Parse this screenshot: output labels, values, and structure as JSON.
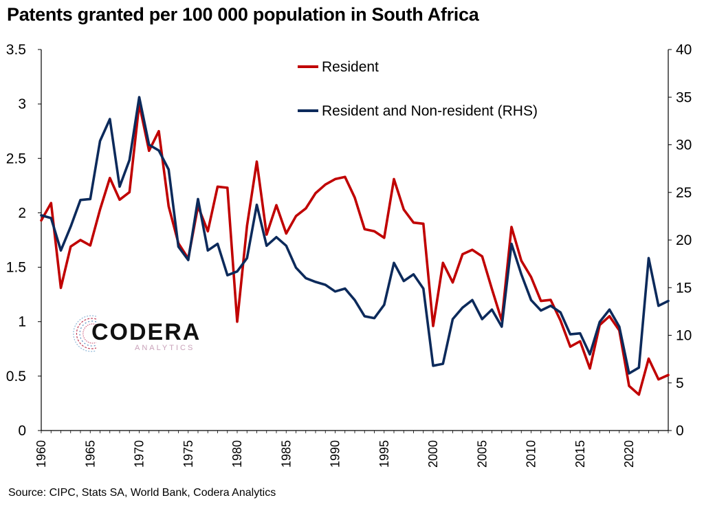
{
  "title": "Patents granted per 100 000 population in South Africa",
  "source": "Source: CIPC, Stats SA, World Bank, Codera Analytics",
  "logo": {
    "name": "CODERA",
    "tagline": "ANALYTICS"
  },
  "chart_data": {
    "type": "line",
    "title": "Patents granted per 100 000 population in South Africa",
    "x": [
      1960,
      1961,
      1962,
      1963,
      1964,
      1965,
      1966,
      1967,
      1968,
      1969,
      1970,
      1971,
      1972,
      1973,
      1974,
      1975,
      1976,
      1977,
      1978,
      1979,
      1980,
      1981,
      1982,
      1983,
      1984,
      1985,
      1986,
      1987,
      1988,
      1989,
      1990,
      1991,
      1992,
      1993,
      1994,
      1995,
      1996,
      1997,
      1998,
      1999,
      2000,
      2001,
      2002,
      2003,
      2004,
      2005,
      2006,
      2007,
      2008,
      2009,
      2010,
      2011,
      2012,
      2013,
      2014,
      2015,
      2016,
      2017,
      2018,
      2019,
      2020,
      2021,
      2022,
      2023,
      2024
    ],
    "x_ticks": [
      "1960",
      "1965",
      "1970",
      "1975",
      "1980",
      "1985",
      "1990",
      "1995",
      "2000",
      "2005",
      "2010",
      "2015",
      "2020"
    ],
    "y_left_ticks": [
      "0",
      "0.5",
      "1",
      "1.5",
      "2",
      "2.5",
      "3",
      "3.5"
    ],
    "y_right_ticks": [
      "0",
      "5",
      "10",
      "15",
      "20",
      "25",
      "30",
      "35",
      "40"
    ],
    "ylim_left": [
      0,
      3.5
    ],
    "ylim_right": [
      0,
      40
    ],
    "grid": false,
    "legend_position": "top-center",
    "series": [
      {
        "name": "Resident",
        "axis": "left",
        "color": "#c00000",
        "values": [
          1.93,
          2.09,
          1.31,
          1.69,
          1.75,
          1.7,
          2.03,
          2.32,
          2.12,
          2.19,
          3.0,
          2.57,
          2.75,
          2.06,
          1.72,
          1.58,
          2.06,
          1.83,
          2.24,
          2.23,
          1.0,
          1.88,
          2.47,
          1.8,
          2.07,
          1.81,
          1.97,
          2.04,
          2.18,
          2.26,
          2.31,
          2.33,
          2.14,
          1.85,
          1.83,
          1.77,
          2.31,
          2.03,
          1.91,
          1.9,
          0.96,
          1.54,
          1.36,
          1.62,
          1.66,
          1.6,
          1.3,
          1.01,
          1.87,
          1.56,
          1.41,
          1.19,
          1.2,
          1.01,
          0.77,
          0.82,
          0.57,
          0.97,
          1.05,
          0.92,
          0.41,
          0.33,
          0.66,
          0.47,
          0.51
        ]
      },
      {
        "name": "Resident and Non-resident (RHS)",
        "axis": "right",
        "color": "#0c2a5b",
        "values": [
          22.6,
          22.3,
          18.9,
          21.4,
          24.2,
          24.3,
          30.4,
          32.7,
          25.6,
          28.4,
          35.0,
          30.0,
          29.4,
          27.4,
          19.3,
          17.9,
          24.3,
          18.9,
          19.6,
          16.3,
          16.7,
          18.1,
          23.7,
          19.4,
          20.3,
          19.4,
          17.1,
          16.0,
          15.6,
          15.3,
          14.6,
          14.9,
          13.7,
          12.0,
          11.8,
          13.2,
          17.6,
          15.7,
          16.4,
          14.9,
          6.8,
          7.0,
          11.7,
          12.9,
          13.7,
          11.7,
          12.7,
          10.9,
          19.6,
          16.4,
          13.7,
          12.6,
          13.1,
          12.4,
          10.1,
          10.2,
          8.0,
          11.4,
          12.7,
          10.9,
          6.0,
          6.6,
          18.1,
          13.1,
          13.6
        ]
      }
    ]
  }
}
